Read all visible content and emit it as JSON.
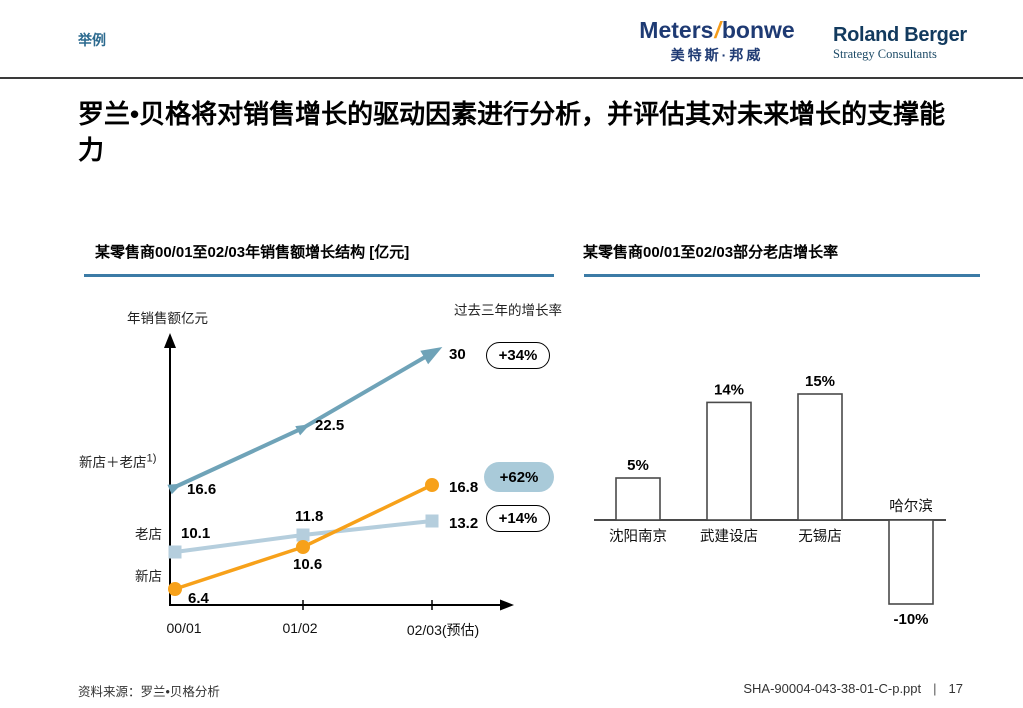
{
  "page": {
    "tag": "举例",
    "title": "罗兰•贝格将对销售增长的驱动因素进行分析，并评估其对未来增长的支撑能力",
    "footer_source": "资料来源：罗兰•贝格分析",
    "footer_doc": "SHA-90004-043-38-01-C-p.ppt",
    "footer_separator": "|",
    "footer_page": "17"
  },
  "logos": {
    "metersbonwe": {
      "word_left": "Meters",
      "slash": "/",
      "word_right": "bonwe",
      "chinese": "美特斯·邦威",
      "color": "#1e3a73",
      "slash_color": "#f59c1a"
    },
    "roland_berger": {
      "name": "Roland Berger",
      "subtitle": "Strategy Consultants",
      "color": "#123a5e"
    }
  },
  "colors": {
    "accent_teal": "#2c6a8f",
    "heading_rule": "#3c7ba6",
    "line_total": "#6fa3b8",
    "line_old": "#b5cedd",
    "line_new": "#f7a11a",
    "badge_highlight_fill": "#a9cad9",
    "bar_border": "#4a4a4a"
  },
  "chart_data": [
    {
      "type": "line",
      "title": "某零售商00/01至02/03年销售额增长结构 [亿元]",
      "ylabel": "年销售额亿元",
      "annotation": "过去三年的增长率",
      "categories": [
        "00/01",
        "01/02",
        "02/03(预估)"
      ],
      "legend_position": "left-of-lines",
      "grid": false,
      "series": [
        {
          "name": "新店＋老店",
          "footnote": "1)",
          "values": [
            16.6,
            22.5,
            30
          ],
          "color": "#6fa3b8",
          "marker": "triangle-arrow",
          "growth_badge": "+34%",
          "badge_style": "outline"
        },
        {
          "name": "老店",
          "values": [
            10.1,
            11.8,
            13.2
          ],
          "color": "#b5cedd",
          "marker": "square",
          "growth_badge": "+14%",
          "badge_style": "outline"
        },
        {
          "name": "新店",
          "values": [
            6.4,
            10.6,
            16.8
          ],
          "color": "#f7a11a",
          "marker": "circle",
          "growth_badge": "+62%",
          "badge_style": "filled",
          "badge_fill": "#a9cad9"
        }
      ]
    },
    {
      "type": "bar",
      "title": "某零售商00/01至02/03部分老店增长率",
      "categories": [
        "沈阳南京",
        "武建设店",
        "无锡店",
        "哈尔滨"
      ],
      "values": [
        5,
        14,
        15,
        -10
      ],
      "labels": [
        "5%",
        "14%",
        "15%",
        "-10%"
      ],
      "bar_fill": "#ffffff",
      "bar_border": "#4a4a4a",
      "grid": false
    }
  ]
}
